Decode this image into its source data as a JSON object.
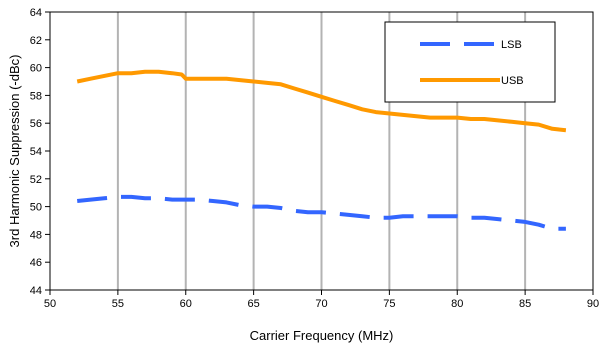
{
  "chart_data": {
    "type": "line",
    "title": "",
    "xlabel": "Carrier Frequency (MHz)",
    "ylabel": "3rd Harmonic Suppression (-dBc)",
    "xlim": [
      50,
      90
    ],
    "ylim": [
      44,
      64
    ],
    "x_ticks": [
      50,
      55,
      60,
      65,
      70,
      75,
      80,
      85,
      90
    ],
    "y_ticks": [
      44,
      46,
      48,
      50,
      52,
      54,
      56,
      58,
      60,
      62,
      64
    ],
    "grid": "vertical",
    "legend_position": "top-right",
    "series": [
      {
        "name": "LSB",
        "color": "#3366FF",
        "line_style": "dashed",
        "x": [
          52,
          53,
          54,
          55,
          56,
          57,
          58,
          59,
          60,
          61,
          62,
          63,
          64,
          65,
          66,
          67,
          68,
          69,
          70,
          71,
          72,
          73,
          74,
          75,
          76,
          77,
          78,
          79,
          80,
          81,
          82,
          83,
          84,
          85,
          86,
          87,
          88
        ],
        "y": [
          50.4,
          50.5,
          50.6,
          50.7,
          50.7,
          50.6,
          50.6,
          50.5,
          50.5,
          50.5,
          50.4,
          50.3,
          50.1,
          50.0,
          50.0,
          49.9,
          49.7,
          49.6,
          49.6,
          49.5,
          49.4,
          49.3,
          49.2,
          49.2,
          49.3,
          49.3,
          49.3,
          49.3,
          49.3,
          49.2,
          49.2,
          49.1,
          49.0,
          48.9,
          48.7,
          48.4,
          48.4
        ]
      },
      {
        "name": "USB",
        "color": "#FF9900",
        "line_style": "solid",
        "x": [
          52,
          53,
          54,
          55,
          56,
          57,
          58,
          59,
          59.7,
          60,
          61,
          62,
          63,
          64,
          65,
          66,
          67,
          68,
          69,
          70,
          71,
          72,
          73,
          74,
          75,
          76,
          77,
          78,
          79,
          80,
          81,
          82,
          83,
          84,
          85,
          86,
          87,
          88
        ],
        "y": [
          59.0,
          59.2,
          59.4,
          59.6,
          59.6,
          59.7,
          59.7,
          59.6,
          59.5,
          59.2,
          59.2,
          59.2,
          59.2,
          59.1,
          59.0,
          58.9,
          58.8,
          58.5,
          58.2,
          57.9,
          57.6,
          57.3,
          57.0,
          56.8,
          56.7,
          56.6,
          56.5,
          56.4,
          56.4,
          56.4,
          56.3,
          56.3,
          56.2,
          56.1,
          56.0,
          55.9,
          55.6,
          55.5
        ]
      }
    ]
  }
}
